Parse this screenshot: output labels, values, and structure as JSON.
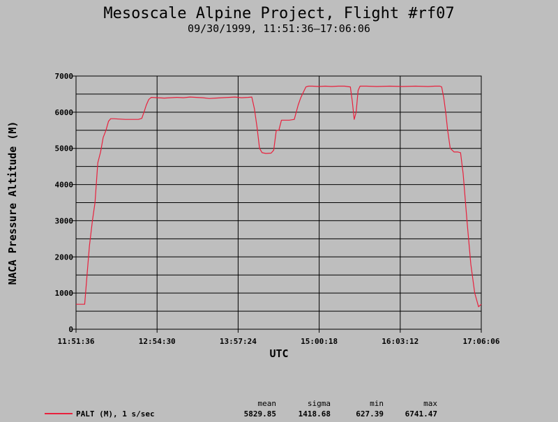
{
  "chart_data": {
    "type": "line",
    "title": "Mesoscale Alpine Project, Flight #rf07",
    "subtitle": "09/30/1999, 11:51:36–17:06:06",
    "xlabel": "UTC",
    "ylabel": "NACA Pressure Altitude (M)",
    "xlim": [
      "11:51:36",
      "17:06:06"
    ],
    "ylim": [
      0,
      7000
    ],
    "grid": true,
    "x_ticks": [
      "11:51:36",
      "12:54:30",
      "13:57:24",
      "15:00:18",
      "16:03:12",
      "17:06:06"
    ],
    "y_ticks": [
      "0",
      "1000",
      "2000",
      "3000",
      "4000",
      "5000",
      "6000",
      "7000"
    ],
    "color": "#e8203c",
    "series": [
      {
        "name": "PALT (M), 1 s/sec",
        "x": [
          "11:51:36",
          "11:58:20",
          "12:00:10",
          "12:02:00",
          "12:04:20",
          "12:06:20",
          "12:08:30",
          "12:10:40",
          "12:12:40",
          "12:14:50",
          "12:16:50",
          "12:18:30",
          "12:21:00",
          "12:25:00",
          "12:30:00",
          "12:35:00",
          "12:40:00",
          "12:42:40",
          "12:44:20",
          "12:46:10",
          "12:48:00",
          "12:50:00",
          "12:55:00",
          "13:00:00",
          "13:05:00",
          "13:10:00",
          "13:15:00",
          "13:20:00",
          "13:25:00",
          "13:30:00",
          "13:35:00",
          "13:40:00",
          "13:45:00",
          "13:50:00",
          "13:55:00",
          "14:00:00",
          "14:05:00",
          "14:08:00",
          "14:10:00",
          "14:12:00",
          "14:14:00",
          "14:16:00",
          "14:19:00",
          "14:23:00",
          "14:25:00",
          "14:27:00",
          "14:29:00",
          "14:31:00",
          "14:33:00",
          "14:35:00",
          "14:37:00",
          "14:41:00",
          "14:44:00",
          "14:46:00",
          "14:48:00",
          "14:50:00",
          "14:52:00",
          "14:55:00",
          "15:00:00",
          "15:05:00",
          "15:10:00",
          "15:15:00",
          "15:20:00",
          "15:24:30",
          "15:26:00",
          "15:27:30",
          "15:29:00",
          "15:30:30",
          "15:32:00",
          "15:37:00",
          "15:45:00",
          "15:55:00",
          "16:05:00",
          "16:15:00",
          "16:25:00",
          "16:30:00",
          "16:34:00",
          "16:35:20",
          "16:37:00",
          "16:38:30",
          "16:40:00",
          "16:42:00",
          "16:45:00",
          "16:48:00",
          "16:50:00",
          "16:52:00",
          "16:55:00",
          "16:58:00",
          "17:01:00",
          "17:04:00",
          "17:06:06"
        ],
        "y": [
          690,
          690,
          1500,
          2300,
          3000,
          3500,
          4600,
          4900,
          5300,
          5500,
          5750,
          5820,
          5820,
          5810,
          5800,
          5800,
          5800,
          5830,
          6000,
          6200,
          6350,
          6410,
          6400,
          6390,
          6400,
          6410,
          6400,
          6420,
          6410,
          6400,
          6380,
          6390,
          6400,
          6410,
          6420,
          6400,
          6410,
          6420,
          6100,
          5600,
          5000,
          4880,
          4860,
          4870,
          4950,
          5500,
          5500,
          5780,
          5780,
          5780,
          5780,
          5800,
          6200,
          6400,
          6550,
          6700,
          6720,
          6720,
          6710,
          6720,
          6710,
          6720,
          6720,
          6700,
          6300,
          5800,
          6000,
          6600,
          6720,
          6720,
          6710,
          6720,
          6710,
          6720,
          6710,
          6720,
          6720,
          6700,
          6400,
          6000,
          5500,
          5000,
          4900,
          4900,
          4880,
          4300,
          3000,
          1800,
          1000,
          620,
          690
        ]
      }
    ],
    "stats": {
      "headers": [
        "mean",
        "sigma",
        "min",
        "max"
      ],
      "values": [
        "5829.85",
        "1418.68",
        "627.39",
        "6741.47"
      ]
    }
  }
}
